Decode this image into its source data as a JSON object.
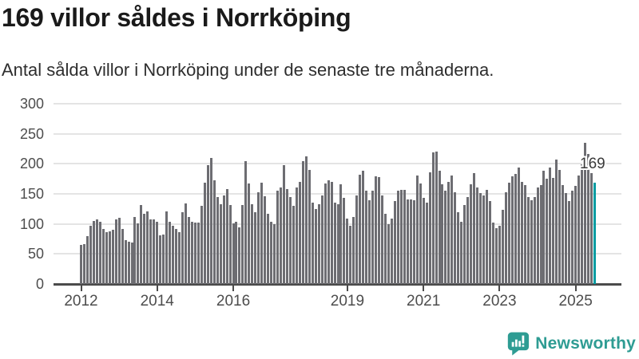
{
  "header": {
    "title": "169 villor såldes i Norrköping",
    "subtitle": "Antal sålda villor i Norrköping under de senaste tre månaderna."
  },
  "chart_data": {
    "type": "bar",
    "title": "169 villor såldes i Norrköping",
    "subtitle": "Antal sålda villor i Norrköping under de senaste tre månaderna.",
    "x_unit": "month",
    "x_start": "2012-01",
    "x_end": "2025-07",
    "ylim": [
      0,
      300
    ],
    "yticks": [
      0,
      50,
      100,
      150,
      200,
      250,
      300
    ],
    "xticks": [
      {
        "label": "2012",
        "month": 0
      },
      {
        "label": "2014",
        "month": 24
      },
      {
        "label": "2016",
        "month": 48
      },
      {
        "label": "2019",
        "month": 84
      },
      {
        "label": "2021",
        "month": 108
      },
      {
        "label": "2023",
        "month": 132
      },
      {
        "label": "2025",
        "month": 156
      }
    ],
    "values": [
      65,
      66,
      79,
      97,
      105,
      108,
      103,
      92,
      86,
      88,
      90,
      107,
      110,
      92,
      73,
      70,
      69,
      112,
      101,
      132,
      117,
      121,
      108,
      107,
      103,
      81,
      82,
      121,
      103,
      97,
      92,
      86,
      119,
      134,
      112,
      103,
      102,
      102,
      130,
      169,
      198,
      210,
      172,
      145,
      133,
      148,
      158,
      131,
      101,
      103,
      94,
      131,
      205,
      167,
      133,
      119,
      153,
      169,
      146,
      117,
      103,
      100,
      155,
      160,
      198,
      158,
      145,
      130,
      160,
      170,
      205,
      212,
      190,
      136,
      125,
      133,
      148,
      167,
      173,
      170,
      136,
      133,
      166,
      143,
      109,
      97,
      112,
      148,
      182,
      188,
      155,
      140,
      155,
      179,
      178,
      148,
      117,
      100,
      109,
      138,
      155,
      156,
      157,
      141,
      141,
      140,
      180,
      167,
      143,
      136,
      186,
      219,
      220,
      188,
      166,
      155,
      170,
      180,
      153,
      119,
      103,
      132,
      145,
      166,
      185,
      161,
      151,
      147,
      156,
      138,
      102,
      93,
      97,
      123,
      153,
      169,
      179,
      183,
      194,
      170,
      165,
      145,
      139,
      145,
      160,
      165,
      188,
      175,
      194,
      177,
      207,
      190,
      165,
      151,
      138,
      155,
      163,
      180,
      199,
      235,
      216,
      185,
      169
    ],
    "highlight_index": 162,
    "highlight_value": 169,
    "annotation_text": "169",
    "grid": true,
    "legend": "none",
    "bar_color": "#6d6d72",
    "highlight_color": "#009ba1",
    "grid_color": "#e4e4e4",
    "axis_color": "#4b4b4b",
    "tick_label_color": "#4d4d4d"
  },
  "footer": {
    "brand": "Newsworthy",
    "brand_color": "#2e9c93"
  }
}
